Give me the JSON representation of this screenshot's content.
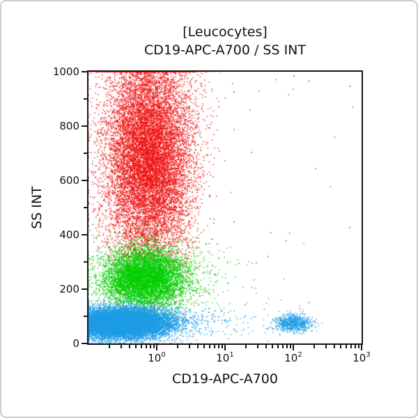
{
  "header": {
    "title_line1": "[Leucocytes]",
    "title_line2": "CD19-APC-A700 / SS INT"
  },
  "chart_data": {
    "type": "scatter",
    "title": "[Leucocytes]",
    "subtitle": "CD19-APC-A700 / SS INT",
    "xlabel": "CD19-APC-A700",
    "ylabel": "SS INT",
    "x_scale": "log10",
    "x_domain_log10": [
      -1,
      3
    ],
    "x_major_tick_exponents": [
      0,
      1,
      2,
      3
    ],
    "y_domain": [
      0,
      1000
    ],
    "y_major_ticks": [
      0,
      200,
      400,
      600,
      800,
      1000
    ],
    "y_minor_ticks": [
      100,
      300,
      500,
      700,
      900
    ],
    "grid": false,
    "legend": false,
    "colors": {
      "granulocytes": "#ee1111",
      "monocytes": "#00cf00",
      "lymphocytes": "#1e9ce6",
      "debris": "#3a3a3a"
    },
    "populations": [
      {
        "name": "granulocytes",
        "color": "#ee1111",
        "dist": "gaussian",
        "count": 14000,
        "x_log_mean": -0.12,
        "x_log_sd": 0.32,
        "y_mean": 690,
        "y_sd": 200
      },
      {
        "name": "monocytes-right-tail",
        "color": "#00cf00",
        "dist": "gaussian",
        "count": 300,
        "x_log_mean": 0.35,
        "x_log_sd": 0.5,
        "y_mean": 245,
        "y_sd": 75
      },
      {
        "name": "monocytes",
        "color": "#00cf00",
        "dist": "gaussian",
        "count": 7000,
        "x_log_mean": -0.18,
        "x_log_sd": 0.3,
        "y_mean": 240,
        "y_sd": 55
      },
      {
        "name": "debris-dark",
        "color": "#3a3a3a",
        "dist": "uniform",
        "count": 18,
        "x_log_range": [
          -0.2,
          2.9
        ],
        "y_range": [
          140,
          990
        ]
      },
      {
        "name": "debris-red",
        "color": "#ee1111",
        "dist": "uniform",
        "count": 22,
        "x_log_range": [
          0.2,
          2.9
        ],
        "y_range": [
          100,
          990
        ]
      },
      {
        "name": "lymphocytes-right-trail",
        "color": "#1e9ce6",
        "dist": "gaussian",
        "count": 250,
        "x_log_mean": 0.45,
        "x_log_sd": 0.55,
        "y_mean": 75,
        "y_sd": 30
      },
      {
        "name": "lymphocytes",
        "color": "#1e9ce6",
        "dist": "gaussian",
        "count": 16000,
        "x_log_mean": -0.55,
        "x_log_sd": 0.38,
        "y_mean": 75,
        "y_sd": 27
      },
      {
        "name": "b-cells",
        "color": "#1e9ce6",
        "dist": "gaussian",
        "count": 750,
        "x_log_mean": 2.0,
        "x_log_sd": 0.13,
        "y_mean": 75,
        "y_sd": 16
      }
    ]
  }
}
